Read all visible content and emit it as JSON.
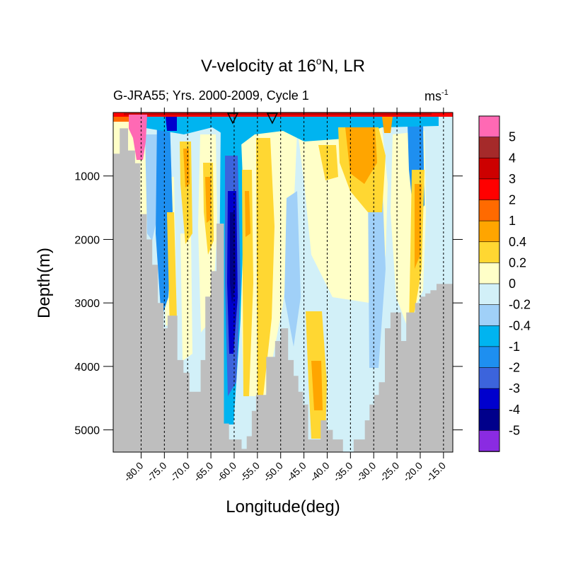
{
  "chart_data": {
    "type": "heatmap",
    "title_main": "V-velocity at 16",
    "title_sup": "o",
    "title_tail": "N, LR",
    "subtitle": "G-JRA55; Yrs. 2000-2009, Cycle 1",
    "units_base": "ms",
    "units_sup": "-1",
    "xlabel": "Longitude(deg)",
    "ylabel": "Depth(m)",
    "xlim": [
      -86,
      -13
    ],
    "ylim": [
      5350,
      0
    ],
    "x_ticks": [
      -80,
      -75,
      -70,
      -65,
      -60,
      -55,
      -50,
      -45,
      -40,
      -35,
      -30,
      -25,
      -20,
      -15
    ],
    "x_tick_labels": [
      "-80.0",
      "-75.0",
      "-70.0",
      "-65.0",
      "-60.0",
      "-55.0",
      "-50.0",
      "-45.0",
      "-40.0",
      "-35.0",
      "-30.0",
      "-25.0",
      "-20.0",
      "-15.0"
    ],
    "y_ticks": [
      1000,
      2000,
      3000,
      4000,
      5000
    ],
    "y_tick_labels": [
      "1000",
      "2000",
      "3000",
      "4000",
      "5000"
    ],
    "markers": [
      {
        "symbol": "triangle-down",
        "x": -60.3
      },
      {
        "symbol": "triangle-down",
        "x": -51.8
      }
    ],
    "colorbar": {
      "labels": [
        "5",
        "4",
        "3",
        "2",
        "1",
        "0.4",
        "0.2",
        "0",
        "-0.2",
        "-0.4",
        "-1",
        "-2",
        "-3",
        "-4",
        "-5"
      ],
      "colors": [
        "#ff69b4",
        "#a52a2a",
        "#cd0000",
        "#ff0000",
        "#ff6a00",
        "#ffa500",
        "#ffd732",
        "#ffffc8",
        "#d2f0f8",
        "#a0d0f8",
        "#00b4f0",
        "#1e8ff0",
        "#3c64dc",
        "#0000cd",
        "#00008b",
        "#8a2be2"
      ]
    },
    "land_color": "#bebebe",
    "bathymetry": [
      [
        -86,
        650
      ],
      [
        -84.6,
        650
      ],
      [
        -84.6,
        250
      ],
      [
        -82.8,
        250
      ],
      [
        -82.8,
        600
      ],
      [
        -81.3,
        600
      ],
      [
        -81.3,
        800
      ],
      [
        -80.2,
        800
      ],
      [
        -80.2,
        1600
      ],
      [
        -78.8,
        1600
      ],
      [
        -78.8,
        2000
      ],
      [
        -77.6,
        2000
      ],
      [
        -77.6,
        2400
      ],
      [
        -76.4,
        2400
      ],
      [
        -76.4,
        3000
      ],
      [
        -75.2,
        3000
      ],
      [
        -75.2,
        3400
      ],
      [
        -74.3,
        3400
      ],
      [
        -74.3,
        3200
      ],
      [
        -72.2,
        3200
      ],
      [
        -72.2,
        3900
      ],
      [
        -70.9,
        3900
      ],
      [
        -70.9,
        4100
      ],
      [
        -69.6,
        4100
      ],
      [
        -69.6,
        4400
      ],
      [
        -67.2,
        4400
      ],
      [
        -67.2,
        3900
      ],
      [
        -66.2,
        3900
      ],
      [
        -66.2,
        2900
      ],
      [
        -65,
        2900
      ],
      [
        -65,
        2500
      ],
      [
        -63.8,
        2500
      ],
      [
        -63.8,
        1750
      ],
      [
        -62.2,
        1750
      ],
      [
        -62.2,
        4900
      ],
      [
        -61.1,
        4900
      ],
      [
        -61.1,
        5150
      ],
      [
        -58.4,
        5150
      ],
      [
        -58.4,
        5300
      ],
      [
        -57.3,
        5300
      ],
      [
        -57.3,
        5100
      ],
      [
        -56.2,
        5100
      ],
      [
        -56.2,
        4700
      ],
      [
        -55.3,
        4700
      ],
      [
        -55.3,
        4450
      ],
      [
        -53.1,
        4450
      ],
      [
        -53.1,
        3850
      ],
      [
        -51.2,
        3850
      ],
      [
        -51.2,
        3600
      ],
      [
        -50,
        3600
      ],
      [
        -50,
        3400
      ],
      [
        -48.4,
        3400
      ],
      [
        -48.4,
        3900
      ],
      [
        -47.2,
        3900
      ],
      [
        -47.2,
        4150
      ],
      [
        -46.2,
        4150
      ],
      [
        -46.2,
        4400
      ],
      [
        -45.2,
        4400
      ],
      [
        -45.2,
        4600
      ],
      [
        -44.1,
        4600
      ],
      [
        -44.1,
        5150
      ],
      [
        -41.4,
        5150
      ],
      [
        -41.4,
        4850
      ],
      [
        -40.1,
        4850
      ],
      [
        -40.1,
        5000
      ],
      [
        -38.8,
        5000
      ],
      [
        -38.8,
        5150
      ],
      [
        -36.6,
        5150
      ],
      [
        -36.6,
        5350
      ],
      [
        -34.3,
        5350
      ],
      [
        -34.3,
        5150
      ],
      [
        -31.9,
        5150
      ],
      [
        -31.9,
        4850
      ],
      [
        -30.9,
        4850
      ],
      [
        -30.9,
        4600
      ],
      [
        -29.9,
        4600
      ],
      [
        -29.9,
        4450
      ],
      [
        -28.9,
        4450
      ],
      [
        -28.9,
        4250
      ],
      [
        -27.6,
        4250
      ],
      [
        -27.6,
        3400
      ],
      [
        -26.4,
        3400
      ],
      [
        -26.4,
        3150
      ],
      [
        -24.1,
        3150
      ],
      [
        -24.1,
        3600
      ],
      [
        -23,
        3600
      ],
      [
        -23,
        3150
      ],
      [
        -21.1,
        3150
      ],
      [
        -21.1,
        3000
      ],
      [
        -20,
        3000
      ],
      [
        -20,
        2900
      ],
      [
        -18.9,
        2900
      ],
      [
        -18.9,
        2850
      ],
      [
        -17.8,
        2850
      ],
      [
        -17.8,
        2800
      ],
      [
        -16.5,
        2800
      ],
      [
        -16.5,
        2700
      ],
      [
        -13,
        2700
      ]
    ]
  }
}
